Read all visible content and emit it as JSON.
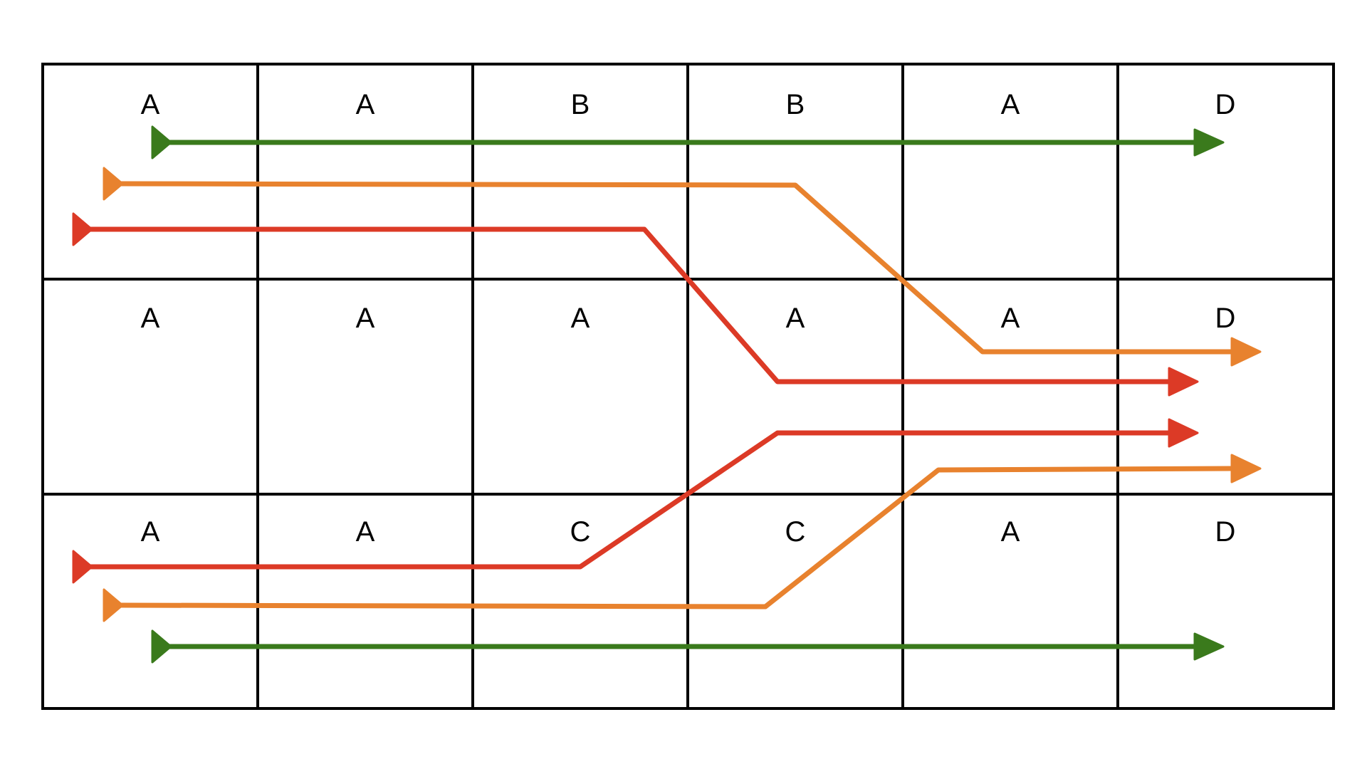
{
  "grid": {
    "rows": 3,
    "cols": 6,
    "cells": [
      [
        "A",
        "A",
        "B",
        "B",
        "A",
        "D"
      ],
      [
        "A",
        "A",
        "A",
        "A",
        "A",
        "D"
      ],
      [
        "A",
        "A",
        "C",
        "C",
        "A",
        "D"
      ]
    ]
  },
  "colors": {
    "green": "#3a7a1c",
    "orange": "#e8822e",
    "red": "#dc3a26",
    "grid": "#000000"
  },
  "routes": [
    {
      "name": "green-route-top",
      "color": "green",
      "from": "A",
      "to": "D"
    },
    {
      "name": "orange-route-top",
      "color": "orange",
      "from": "A",
      "to": "D"
    },
    {
      "name": "red-route-top",
      "color": "red",
      "from": "A",
      "to": "D"
    },
    {
      "name": "red-route-bottom",
      "color": "red",
      "from": "A",
      "to": "D"
    },
    {
      "name": "orange-route-bottom",
      "color": "orange",
      "from": "A",
      "to": "D"
    },
    {
      "name": "green-route-bottom",
      "color": "green",
      "from": "A",
      "to": "D"
    }
  ]
}
